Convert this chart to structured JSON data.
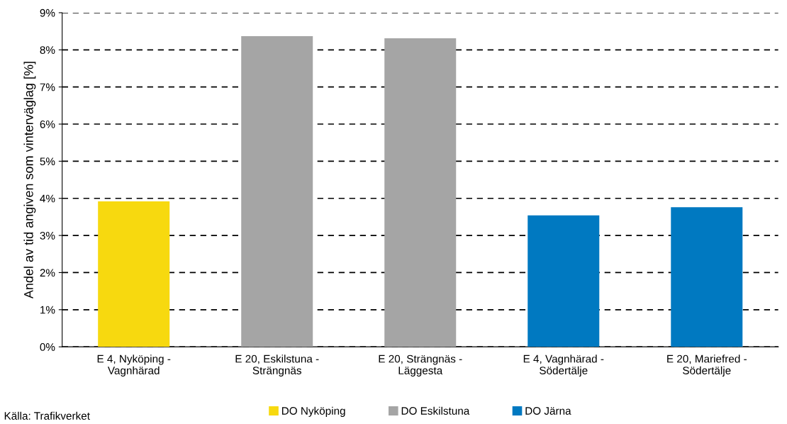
{
  "chart_data": {
    "type": "bar",
    "ylabel": "Andel av tid angiven som vinterväglag [%]",
    "categories": [
      "E 4, Nyköping -\nVagnhärad",
      "E 20, Eskilstuna -\nSträngnäs",
      "E 20, Strängnäs -\nLäggesta",
      "E 4, Vagnhärad -\nSödertälje",
      "E 20, Mariefred -\nSödertälje"
    ],
    "series": [
      {
        "name": "DO Nyköping",
        "color": "#f7d90f",
        "values": [
          3.92,
          null,
          null,
          null,
          null
        ]
      },
      {
        "name": "DO Eskilstuna",
        "color": "#a5a5a5",
        "values": [
          null,
          8.37,
          8.31,
          null,
          null
        ]
      },
      {
        "name": "DO Järna",
        "color": "#0079c1",
        "values": [
          null,
          null,
          null,
          3.54,
          3.76
        ]
      }
    ],
    "ylim": [
      0,
      9
    ],
    "yticks": [
      {
        "value": 0,
        "label": "0%"
      },
      {
        "value": 1,
        "label": "1%"
      },
      {
        "value": 2,
        "label": "2%"
      },
      {
        "value": 3,
        "label": "3%"
      },
      {
        "value": 4,
        "label": "4%"
      },
      {
        "value": 5,
        "label": "5%"
      },
      {
        "value": 6,
        "label": "6%"
      },
      {
        "value": 7,
        "label": "7%"
      },
      {
        "value": 8,
        "label": "8%"
      },
      {
        "value": 9,
        "label": "9%"
      }
    ],
    "grid": "y",
    "legend": "bottom",
    "annotations": [
      "Källa: Trafikverket"
    ]
  }
}
